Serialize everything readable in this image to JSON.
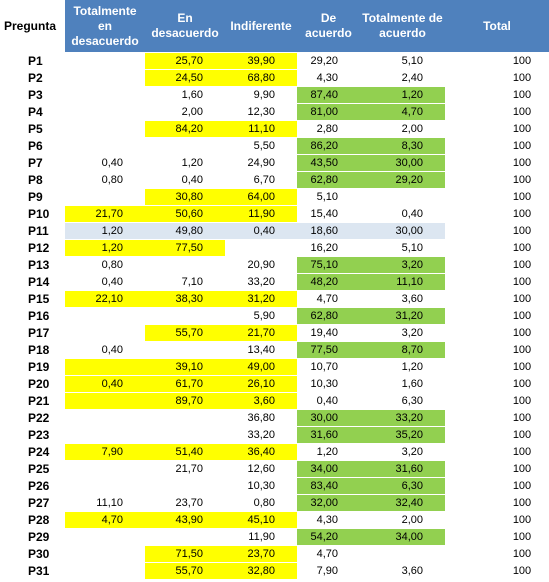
{
  "table": {
    "header": [
      "Pregunta",
      "Totalmente en desacuerdo",
      "En desacuerdo",
      "Indiferente",
      "De acuerdo",
      "Totalmente de acuerdo",
      "Total"
    ],
    "header_fill": "#4f81bd",
    "rows": [
      {
        "cells": [
          "P1",
          null,
          "25,70",
          "39,90",
          "29,20",
          "5,10",
          "100"
        ],
        "fills": [
          null,
          null,
          "#ffff00",
          "#ffff00",
          null,
          null,
          null
        ]
      },
      {
        "cells": [
          "P2",
          null,
          "24,50",
          "68,80",
          "4,30",
          "2,40",
          "100"
        ],
        "fills": [
          null,
          null,
          "#ffff00",
          "#ffff00",
          null,
          null,
          null
        ]
      },
      {
        "cells": [
          "P3",
          null,
          "1,60",
          "9,90",
          "87,40",
          "1,20",
          "100"
        ],
        "fills": [
          null,
          null,
          null,
          null,
          "#92d050",
          "#92d050",
          null
        ]
      },
      {
        "cells": [
          "P4",
          null,
          "2,00",
          "12,30",
          "81,00",
          "4,70",
          "100"
        ],
        "fills": [
          null,
          null,
          null,
          null,
          "#92d050",
          "#92d050",
          null
        ]
      },
      {
        "cells": [
          "P5",
          null,
          "84,20",
          "11,10",
          "2,80",
          "2,00",
          "100"
        ],
        "fills": [
          null,
          null,
          "#ffff00",
          "#ffff00",
          null,
          null,
          null
        ]
      },
      {
        "cells": [
          "P6",
          null,
          null,
          "5,50",
          "86,20",
          "8,30",
          "100"
        ],
        "fills": [
          null,
          null,
          null,
          null,
          "#92d050",
          "#92d050",
          null
        ]
      },
      {
        "cells": [
          "P7",
          "0,40",
          "1,20",
          "24,90",
          "43,50",
          "30,00",
          "100"
        ],
        "fills": [
          null,
          null,
          null,
          null,
          "#92d050",
          "#92d050",
          null
        ]
      },
      {
        "cells": [
          "P8",
          "0,80",
          "0,40",
          "6,70",
          "62,80",
          "29,20",
          "100"
        ],
        "fills": [
          null,
          null,
          null,
          null,
          "#92d050",
          "#92d050",
          null
        ]
      },
      {
        "cells": [
          "P9",
          null,
          "30,80",
          "64,00",
          "5,10",
          null,
          "100"
        ],
        "fills": [
          null,
          null,
          "#ffff00",
          "#ffff00",
          null,
          null,
          null
        ]
      },
      {
        "cells": [
          "P10",
          "21,70",
          "50,60",
          "11,90",
          "15,40",
          "0,40",
          "100"
        ],
        "fills": [
          null,
          "#ffff00",
          "#ffff00",
          "#ffff00",
          null,
          null,
          null
        ]
      },
      {
        "cells": [
          "P11",
          "1,20",
          "49,80",
          "0,40",
          "18,60",
          "30,00",
          "100"
        ],
        "fills": [
          null,
          "#dce6f1",
          "#dce6f1",
          "#dce6f1",
          "#dce6f1",
          "#dce6f1",
          null
        ]
      },
      {
        "cells": [
          "P12",
          "1,20",
          "77,50",
          null,
          "16,20",
          "5,10",
          "100"
        ],
        "fills": [
          null,
          "#ffff00",
          "#ffff00",
          null,
          null,
          null,
          null
        ]
      },
      {
        "cells": [
          "P13",
          "0,80",
          null,
          "20,90",
          "75,10",
          "3,20",
          "100"
        ],
        "fills": [
          null,
          null,
          null,
          null,
          "#92d050",
          "#92d050",
          null
        ]
      },
      {
        "cells": [
          "P14",
          "0,40",
          "7,10",
          "33,20",
          "48,20",
          "11,10",
          "100"
        ],
        "fills": [
          null,
          null,
          null,
          null,
          "#92d050",
          "#92d050",
          null
        ]
      },
      {
        "cells": [
          "P15",
          "22,10",
          "38,30",
          "31,20",
          "4,70",
          "3,60",
          "100"
        ],
        "fills": [
          null,
          "#ffff00",
          "#ffff00",
          "#ffff00",
          null,
          null,
          null
        ]
      },
      {
        "cells": [
          "P16",
          null,
          null,
          "5,90",
          "62,80",
          "31,20",
          "100"
        ],
        "fills": [
          null,
          null,
          null,
          null,
          "#92d050",
          "#92d050",
          null
        ]
      },
      {
        "cells": [
          "P17",
          null,
          "55,70",
          "21,70",
          "19,40",
          "3,20",
          "100"
        ],
        "fills": [
          null,
          null,
          "#ffff00",
          "#ffff00",
          null,
          null,
          null
        ]
      },
      {
        "cells": [
          "P18",
          "0,40",
          null,
          "13,40",
          "77,50",
          "8,70",
          "100"
        ],
        "fills": [
          null,
          null,
          null,
          null,
          "#92d050",
          "#92d050",
          null
        ]
      },
      {
        "cells": [
          "P19",
          null,
          "39,10",
          "49,00",
          "10,70",
          "1,20",
          "100"
        ],
        "fills": [
          null,
          "#ffff00",
          "#ffff00",
          "#ffff00",
          null,
          null,
          null
        ]
      },
      {
        "cells": [
          "P20",
          "0,40",
          "61,70",
          "26,10",
          "10,30",
          "1,60",
          "100"
        ],
        "fills": [
          null,
          "#ffff00",
          "#ffff00",
          "#ffff00",
          null,
          null,
          null
        ]
      },
      {
        "cells": [
          "P21",
          null,
          "89,70",
          "3,60",
          "0,40",
          "6,30",
          "100"
        ],
        "fills": [
          null,
          "#ffff00",
          "#ffff00",
          "#ffff00",
          null,
          null,
          null
        ]
      },
      {
        "cells": [
          "P22",
          null,
          null,
          "36,80",
          "30,00",
          "33,20",
          "100"
        ],
        "fills": [
          null,
          null,
          null,
          null,
          "#92d050",
          "#92d050",
          null
        ]
      },
      {
        "cells": [
          "P23",
          null,
          null,
          "33,20",
          "31,60",
          "35,20",
          "100"
        ],
        "fills": [
          null,
          null,
          null,
          null,
          "#92d050",
          "#92d050",
          null
        ]
      },
      {
        "cells": [
          "P24",
          "7,90",
          "51,40",
          "36,40",
          "1,20",
          "3,20",
          "100"
        ],
        "fills": [
          null,
          "#ffff00",
          "#ffff00",
          "#ffff00",
          null,
          null,
          null
        ]
      },
      {
        "cells": [
          "P25",
          null,
          "21,70",
          "12,60",
          "34,00",
          "31,60",
          "100"
        ],
        "fills": [
          null,
          null,
          null,
          null,
          "#92d050",
          "#92d050",
          null
        ]
      },
      {
        "cells": [
          "P26",
          null,
          null,
          "10,30",
          "83,40",
          "6,30",
          "100"
        ],
        "fills": [
          null,
          null,
          null,
          null,
          "#92d050",
          "#92d050",
          null
        ]
      },
      {
        "cells": [
          "P27",
          "11,10",
          "23,70",
          "0,80",
          "32,00",
          "32,40",
          "100"
        ],
        "fills": [
          null,
          null,
          null,
          null,
          "#92d050",
          "#92d050",
          null
        ]
      },
      {
        "cells": [
          "P28",
          "4,70",
          "43,90",
          "45,10",
          "4,30",
          "2,00",
          "100"
        ],
        "fills": [
          null,
          "#ffff00",
          "#ffff00",
          "#ffff00",
          null,
          null,
          null
        ]
      },
      {
        "cells": [
          "P29",
          null,
          null,
          "11,90",
          "54,20",
          "34,00",
          "100"
        ],
        "fills": [
          null,
          null,
          null,
          null,
          "#92d050",
          "#92d050",
          null
        ]
      },
      {
        "cells": [
          "P30",
          null,
          "71,50",
          "23,70",
          "4,70",
          null,
          "100"
        ],
        "fills": [
          null,
          null,
          "#ffff00",
          "#ffff00",
          null,
          null,
          null
        ]
      },
      {
        "cells": [
          "P31",
          null,
          "55,70",
          "32,80",
          "7,90",
          "3,60",
          "100"
        ],
        "fills": [
          null,
          null,
          "#ffff00",
          "#ffff00",
          null,
          null,
          null
        ]
      }
    ]
  }
}
